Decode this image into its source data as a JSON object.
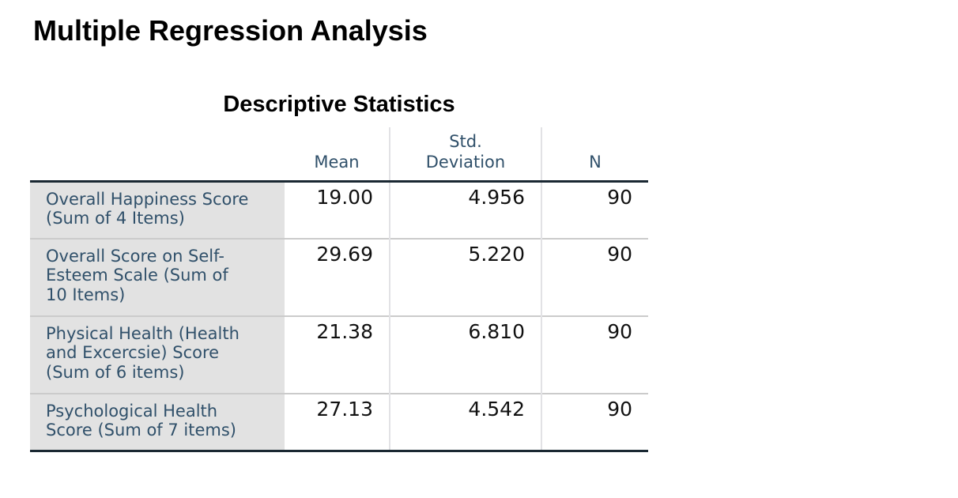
{
  "page": {
    "title": "Multiple Regression Analysis"
  },
  "table": {
    "title": "Descriptive Statistics",
    "columns": {
      "label": "",
      "mean": "Mean",
      "std": "Std.\nDeviation",
      "n": "N"
    },
    "rows": [
      {
        "label": "Overall Happiness Score\n(Sum of 4 Items)",
        "mean": "19.00",
        "std": "4.956",
        "n": "90"
      },
      {
        "label": "Overall Score on Self-\nEsteem Scale (Sum of\n10 Items)",
        "mean": "29.69",
        "std": "5.220",
        "n": "90"
      },
      {
        "label": "Physical Health (Health\nand Excercsie) Score\n(Sum of 6 items)",
        "mean": "21.38",
        "std": "6.810",
        "n": "90"
      },
      {
        "label": "Psychological Health\nScore (Sum of 7 items)",
        "mean": "27.13",
        "std": "4.542",
        "n": "90"
      }
    ],
    "colors": {
      "header_text": "#30506a",
      "label_text": "#30506a",
      "label_background": "#e2e2e2",
      "heavy_rule": "#1a2832",
      "row_separator": "#cbcbcb",
      "column_separator": "#e2e2e5",
      "value_text": "#111111"
    }
  }
}
